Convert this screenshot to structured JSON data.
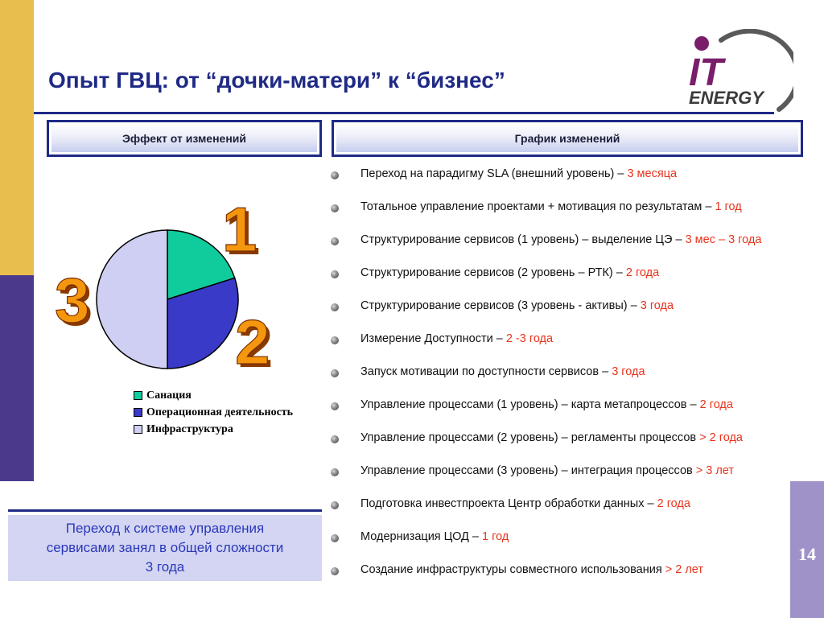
{
  "slide": {
    "title": "Опыт ГВЦ: от “дочки-матери” к “бизнес”",
    "page_number": "14",
    "logo": {
      "line1": "IT",
      "line2": "ENERGY"
    }
  },
  "headers": {
    "left": "Эффект от изменений",
    "right": "График изменений"
  },
  "chart_data": {
    "type": "pie",
    "labels": [
      "Санация",
      "Операционная деятельность",
      "Инфраструктура"
    ],
    "values": [
      20,
      30,
      50
    ],
    "colors": [
      "#10cc9c",
      "#3a3ac9",
      "#cfcff3"
    ],
    "legend_position": "bottom"
  },
  "badges": [
    "1",
    "2",
    "3"
  ],
  "summary": {
    "line1": "Переход к системе управления",
    "line2": "сервисами занял в общей сложности",
    "line3": "3 года"
  },
  "schedule": [
    {
      "text": "Переход на парадигму SLA (внешний уровень) – ",
      "highlight": "3 месяца"
    },
    {
      "text": "Тотальное управление проектами + мотивация по результатам – ",
      "highlight": "1 год"
    },
    {
      "text": "Структурирование сервисов (1 уровень) – выделение ЦЭ – ",
      "highlight": "3 мес – 3 года"
    },
    {
      "text": "Структурирование сервисов (2 уровень – РТК) – ",
      "highlight": "2 года"
    },
    {
      "text": "Структурирование сервисов (3 уровень - активы) – ",
      "highlight": "3 года"
    },
    {
      "text": "Измерение Доступности – ",
      "highlight": "2 -3 года"
    },
    {
      "text": "Запуск мотивации по доступности сервисов – ",
      "highlight": "3 года"
    },
    {
      "text": "Управление процессами (1 уровень) – карта метапроцессов – ",
      "highlight": "2 года"
    },
    {
      "text": "Управление процессами (2 уровень) – регламенты процессов ",
      "highlight": "> 2 года"
    },
    {
      "text": "Управление процессами (3 уровень) – интеграция процессов ",
      "highlight": "> 3 лет"
    },
    {
      "text": "Подготовка инвестпроекта Центр обработки данных – ",
      "highlight": "2 года"
    },
    {
      "text": "Модернизация ЦОД – ",
      "highlight": "1 год"
    },
    {
      "text": "Создание инфраструктуры совместного использования ",
      "highlight": "> 2 лет"
    }
  ],
  "colors": {
    "accent_blue": "#1f2a85",
    "highlight_red": "#e8331c",
    "side_yellow": "#e8bf4e",
    "side_purple": "#4b3a8c",
    "badge_orange": "#f08a0a"
  }
}
